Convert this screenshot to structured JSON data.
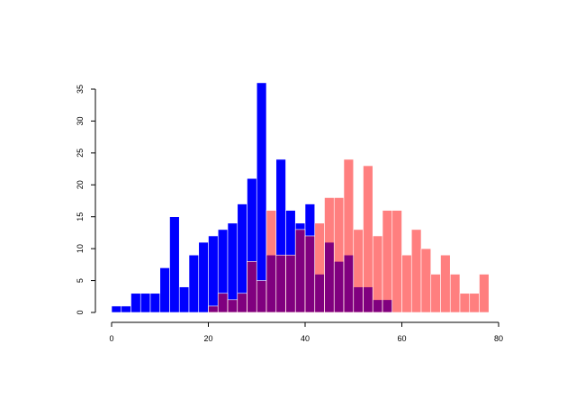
{
  "chart_data": {
    "type": "bar",
    "subtype": "overlapping-histogram",
    "title": "",
    "xlabel": "",
    "ylabel": "",
    "xlim": [
      0,
      80
    ],
    "ylim": [
      0,
      36
    ],
    "bin_width": 2,
    "bin_starts": [
      0,
      2,
      4,
      6,
      8,
      10,
      12,
      14,
      16,
      18,
      20,
      22,
      24,
      26,
      28,
      30,
      32,
      34,
      36,
      38,
      40,
      42,
      44,
      46,
      48,
      50,
      52,
      54,
      56,
      58,
      60,
      62,
      64,
      66,
      68,
      70,
      72,
      74,
      76
    ],
    "x_ticks": [
      0,
      20,
      40,
      60,
      80
    ],
    "y_ticks": [
      0,
      5,
      10,
      15,
      20,
      25,
      30,
      35
    ],
    "grid": false,
    "legend": "none",
    "series": [
      {
        "color": "#0000ff",
        "values": [
          1,
          1,
          3,
          3,
          3,
          7,
          15,
          4,
          9,
          11,
          12,
          13,
          14,
          17,
          21,
          36,
          9,
          24,
          16,
          14,
          17,
          6,
          11,
          8,
          9,
          4,
          4,
          2,
          2,
          0,
          0,
          0,
          0,
          0,
          0,
          0,
          0,
          0,
          0
        ]
      },
      {
        "color": "#ff0000",
        "alpha": 0.5,
        "values": [
          0,
          0,
          0,
          0,
          0,
          0,
          0,
          0,
          0,
          0,
          1,
          3,
          2,
          3,
          8,
          5,
          16,
          9,
          9,
          13,
          12,
          14,
          18,
          18,
          24,
          13,
          23,
          12,
          16,
          16,
          9,
          13,
          10,
          6,
          9,
          6,
          3,
          3,
          6
        ]
      }
    ]
  }
}
